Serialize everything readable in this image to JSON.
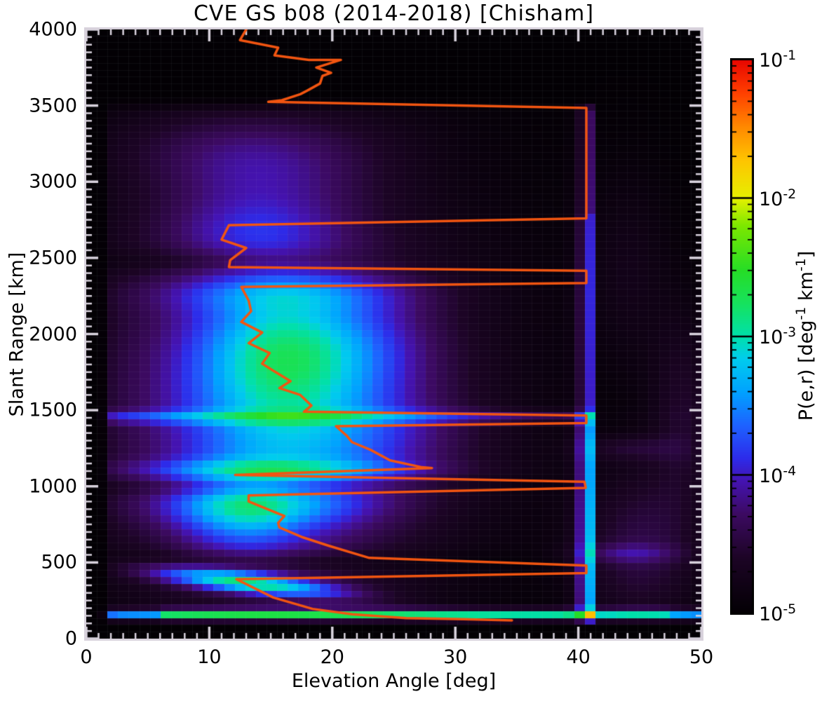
{
  "chart_data": {
    "type": "heatmap",
    "title": "CVE GS b08 (2014-2018) [Chisham]",
    "xlabel": "Elevation Angle [deg]",
    "ylabel": "Slant Range [km]",
    "xlim": [
      0,
      50
    ],
    "ylim": [
      0,
      4000
    ],
    "x_ticks": [
      0,
      10,
      20,
      30,
      40,
      50
    ],
    "y_ticks": [
      0,
      500,
      1000,
      1500,
      2000,
      2500,
      3000,
      3500,
      4000
    ],
    "x_minor_step": 1,
    "y_minor_step": 50,
    "grid": "faint cell grid on",
    "legend": "none",
    "colorbar": {
      "label_parts": [
        {
          "t": "P(e,r) [deg"
        },
        {
          "sup": "-1"
        },
        {
          "t": " km"
        },
        {
          "sup": "-1"
        },
        {
          "t": "]"
        }
      ],
      "scale": "log",
      "range": [
        "1e-5",
        "1e-1"
      ],
      "ticks": [
        {
          "base": "10",
          "exp": "-1",
          "value": 0.1
        },
        {
          "base": "10",
          "exp": "-2",
          "value": 0.01
        },
        {
          "base": "10",
          "exp": "-3",
          "value": 0.001
        },
        {
          "base": "10",
          "exp": "-4",
          "value": 0.0001
        },
        {
          "base": "10",
          "exp": "-5",
          "value": 1e-05
        }
      ]
    },
    "colors": {
      "frame": "#d8d2dc",
      "plot_bg": "#050207",
      "overlay_line": "#f25511",
      "text": "#000000"
    },
    "colormap_stops": [
      [
        0.0,
        "#030004"
      ],
      [
        0.1,
        "#1c0425"
      ],
      [
        0.18,
        "#3c0a62"
      ],
      [
        0.24,
        "#4413b2"
      ],
      [
        0.28,
        "#2d2bea"
      ],
      [
        0.34,
        "#1e62ff"
      ],
      [
        0.4,
        "#00a2ff"
      ],
      [
        0.46,
        "#00ccee"
      ],
      [
        0.5,
        "#00e0ac"
      ],
      [
        0.56,
        "#16e25e"
      ],
      [
        0.62,
        "#26dd26"
      ],
      [
        0.7,
        "#7ce800"
      ],
      [
        0.75,
        "#e6f000"
      ],
      [
        0.82,
        "#ffc400"
      ],
      [
        0.88,
        "#ff8800"
      ],
      [
        0.94,
        "#ff4000"
      ],
      [
        1.0,
        "#e80600"
      ]
    ],
    "bins": {
      "elevation_bins": 58,
      "range_bin_km": 45,
      "range_bins": 89
    },
    "heatmap_model": {
      "comment": "t is normalized log10 intensity: P = 10^(-5 + 4t); gaussian mixture fitted by eye to the 2D histogram",
      "gaussians": [
        {
          "a": 0.13,
          "e": 16,
          "se": 12,
          "r": 1700,
          "sr": 1050
        },
        {
          "a": 0.14,
          "e": 14.5,
          "se": 9,
          "r": 1400,
          "sr": 800
        },
        {
          "a": 0.14,
          "e": 16,
          "se": 5.5,
          "r": 1500,
          "sr": 600
        },
        {
          "a": 0.16,
          "e": 15.5,
          "se": 4.5,
          "r": 1900,
          "sr": 280
        },
        {
          "a": 0.16,
          "e": 12.5,
          "se": 3.5,
          "r": 820,
          "sr": 200
        },
        {
          "a": 0.11,
          "e": 13.5,
          "se": 5,
          "r": 2670,
          "sr": 140
        },
        {
          "a": 0.11,
          "e": 14,
          "se": 6,
          "r": 2980,
          "sr": 200
        },
        {
          "a": 0.1,
          "e": 22,
          "se": 5,
          "r": 1900,
          "sr": 260
        },
        {
          "a": 0.08,
          "e": 24,
          "se": 6,
          "r": 1300,
          "sr": 200
        },
        {
          "a": 0.1,
          "e": 13,
          "se": 8,
          "r": 3250,
          "sr": 180
        }
      ],
      "bands": [
        {
          "a": 0.4,
          "r0": 370,
          "sr": 48,
          "e0": 13,
          "se": 5.5,
          "k": -9
        },
        {
          "a": 0.12,
          "r0": 860,
          "sr": 85,
          "e0": 14,
          "se": 6.5,
          "k": 0
        },
        {
          "a": 0.16,
          "r0": 1110,
          "sr": 48,
          "e0": 15,
          "se": 8.5,
          "k": 0
        },
        {
          "a": 0.16,
          "r0": 1455,
          "sr": 30,
          "e0": 18,
          "se": 30,
          "k": 0
        },
        {
          "a": 0.12,
          "r0": 2260,
          "sr": 85,
          "e0": 16,
          "se": 7.5,
          "k": 0
        },
        {
          "a": -0.08,
          "r0": 510,
          "sr": 55,
          "e0": 15,
          "se": 10,
          "k": 0
        },
        {
          "a": -0.07,
          "r0": 1000,
          "sr": 40,
          "e0": 14,
          "se": 8,
          "k": 0
        },
        {
          "a": -0.06,
          "r0": 2480,
          "sr": 55,
          "e0": 12,
          "se": 8,
          "k": 0
        }
      ],
      "bottom_band": {
        "r0": 152,
        "sr": 26,
        "amp_steps": [
          [
            6,
            0.34
          ],
          [
            40,
            0.5
          ],
          [
            47.5,
            0.44
          ],
          [
            50,
            0.36
          ]
        ]
      },
      "stripe": {
        "e0": 41.0,
        "se": 0.5,
        "amp_by_r": [
          [
            1500,
            0.34
          ],
          [
            2800,
            0.22
          ],
          [
            3500,
            0.16
          ]
        ]
      },
      "stripe2": {
        "e0": 40.1,
        "se": 0.45,
        "a": 0.09,
        "rmax": 3500
      },
      "patches": [
        {
          "a": 0.14,
          "e": 45,
          "se": 3.5,
          "r": 600,
          "sr": 380
        },
        {
          "a": 0.1,
          "e": 44,
          "se": 3,
          "r": 560,
          "sr": 45
        },
        {
          "a": 0.08,
          "e": 44,
          "se": 3,
          "r": 1250,
          "sr": 60
        },
        {
          "a": 0.1,
          "e": 48.5,
          "se": 1.8,
          "r": 1500,
          "sr": 450
        },
        {
          "a": 0.06,
          "e": 44,
          "se": 2.5,
          "r": 2400,
          "sr": 500
        }
      ],
      "cutoffs": {
        "left_e": [
          1.2,
          2.2
        ],
        "top_r": [
          3460,
          3550
        ],
        "bottom_r": [
          98,
          128
        ],
        "right_e": 41.45,
        "right_factor": 0.06
      }
    },
    "overlay_line": {
      "name": "mean elevation vs slant range trace",
      "color": "#f25511",
      "width": 3.5,
      "points_e_r": [
        [
          13.0,
          4000
        ],
        [
          12.5,
          3930
        ],
        [
          15.6,
          3880
        ],
        [
          15.3,
          3830
        ],
        [
          18.1,
          3800
        ],
        [
          20.7,
          3800
        ],
        [
          18.7,
          3750
        ],
        [
          19.9,
          3715
        ],
        [
          19.2,
          3695
        ],
        [
          19.0,
          3645
        ],
        [
          18.0,
          3600
        ],
        [
          17.4,
          3575
        ],
        [
          15.9,
          3535
        ],
        [
          14.8,
          3525
        ],
        [
          40.65,
          3485
        ],
        [
          40.65,
          2760
        ],
        [
          11.6,
          2715
        ],
        [
          11.0,
          2620
        ],
        [
          13.0,
          2565
        ],
        [
          11.7,
          2485
        ],
        [
          11.6,
          2440
        ],
        [
          40.65,
          2415
        ],
        [
          40.65,
          2335
        ],
        [
          12.6,
          2310
        ],
        [
          13.2,
          2220
        ],
        [
          13.4,
          2150
        ],
        [
          12.6,
          2080
        ],
        [
          14.3,
          2010
        ],
        [
          13.2,
          1940
        ],
        [
          14.9,
          1875
        ],
        [
          14.3,
          1805
        ],
        [
          15.2,
          1760
        ],
        [
          16.6,
          1690
        ],
        [
          15.7,
          1645
        ],
        [
          17.4,
          1600
        ],
        [
          18.3,
          1530
        ],
        [
          17.7,
          1490
        ],
        [
          40.65,
          1465
        ],
        [
          40.65,
          1415
        ],
        [
          20.3,
          1395
        ],
        [
          21.2,
          1330
        ],
        [
          21.6,
          1290
        ],
        [
          23.1,
          1240
        ],
        [
          24.7,
          1170
        ],
        [
          27.3,
          1125
        ],
        [
          28.1,
          1120
        ],
        [
          12.1,
          1075
        ],
        [
          40.5,
          1030
        ],
        [
          40.6,
          990
        ],
        [
          13.2,
          940
        ],
        [
          13.2,
          900
        ],
        [
          16.1,
          805
        ],
        [
          15.6,
          760
        ],
        [
          15.7,
          730
        ],
        [
          17.6,
          665
        ],
        [
          19.7,
          610
        ],
        [
          23.0,
          530
        ],
        [
          40.65,
          480
        ],
        [
          40.65,
          430
        ],
        [
          12.2,
          390
        ],
        [
          15.2,
          270
        ],
        [
          18.4,
          195
        ],
        [
          21.6,
          160
        ],
        [
          26.0,
          135
        ],
        [
          30.6,
          128
        ],
        [
          34.6,
          120
        ]
      ]
    }
  }
}
